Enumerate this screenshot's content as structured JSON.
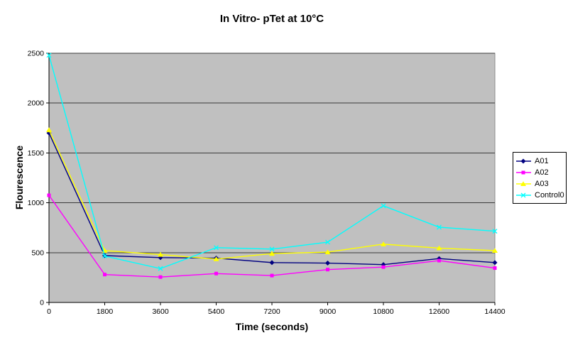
{
  "chart_data": {
    "type": "line",
    "title": "In Vitro- pTet at 10°C",
    "xlabel": "Time (seconds)",
    "ylabel": "Flourescence",
    "x": [
      0,
      1800,
      3600,
      5400,
      7200,
      9000,
      10800,
      12600,
      14400
    ],
    "x_tick_labels": [
      "0",
      "1800",
      "3600",
      "5400",
      "7200",
      "9000",
      "10800",
      "12600",
      "14400"
    ],
    "y_tick_labels": [
      "0",
      "500",
      "1000",
      "1500",
      "2000",
      "2500"
    ],
    "ylim": [
      0,
      2500
    ],
    "ytick_step": 500,
    "grid": true,
    "legend_position": "right",
    "colors": {
      "plot_bg": "#c0c0c0",
      "gridline": "#3a3a3a",
      "axis": "#000000",
      "plot_border": "#8c8c8c",
      "legend_border": "#000000",
      "page_bg": "#ffffff",
      "text": "#000000"
    },
    "series": [
      {
        "name": "A01",
        "color": "#000080",
        "marker": "diamond",
        "values": [
          1700,
          470,
          450,
          445,
          400,
          395,
          380,
          440,
          400
        ]
      },
      {
        "name": "A02",
        "color": "#ff00ff",
        "marker": "square",
        "values": [
          1075,
          280,
          255,
          290,
          270,
          330,
          355,
          420,
          345
        ]
      },
      {
        "name": "A03",
        "color": "#ffff00",
        "marker": "triangle",
        "values": [
          1730,
          520,
          480,
          435,
          490,
          505,
          585,
          545,
          520
        ]
      },
      {
        "name": "Control0",
        "color": "#00ffff",
        "marker": "x",
        "values": [
          2480,
          465,
          340,
          550,
          535,
          605,
          970,
          755,
          715
        ]
      }
    ]
  }
}
